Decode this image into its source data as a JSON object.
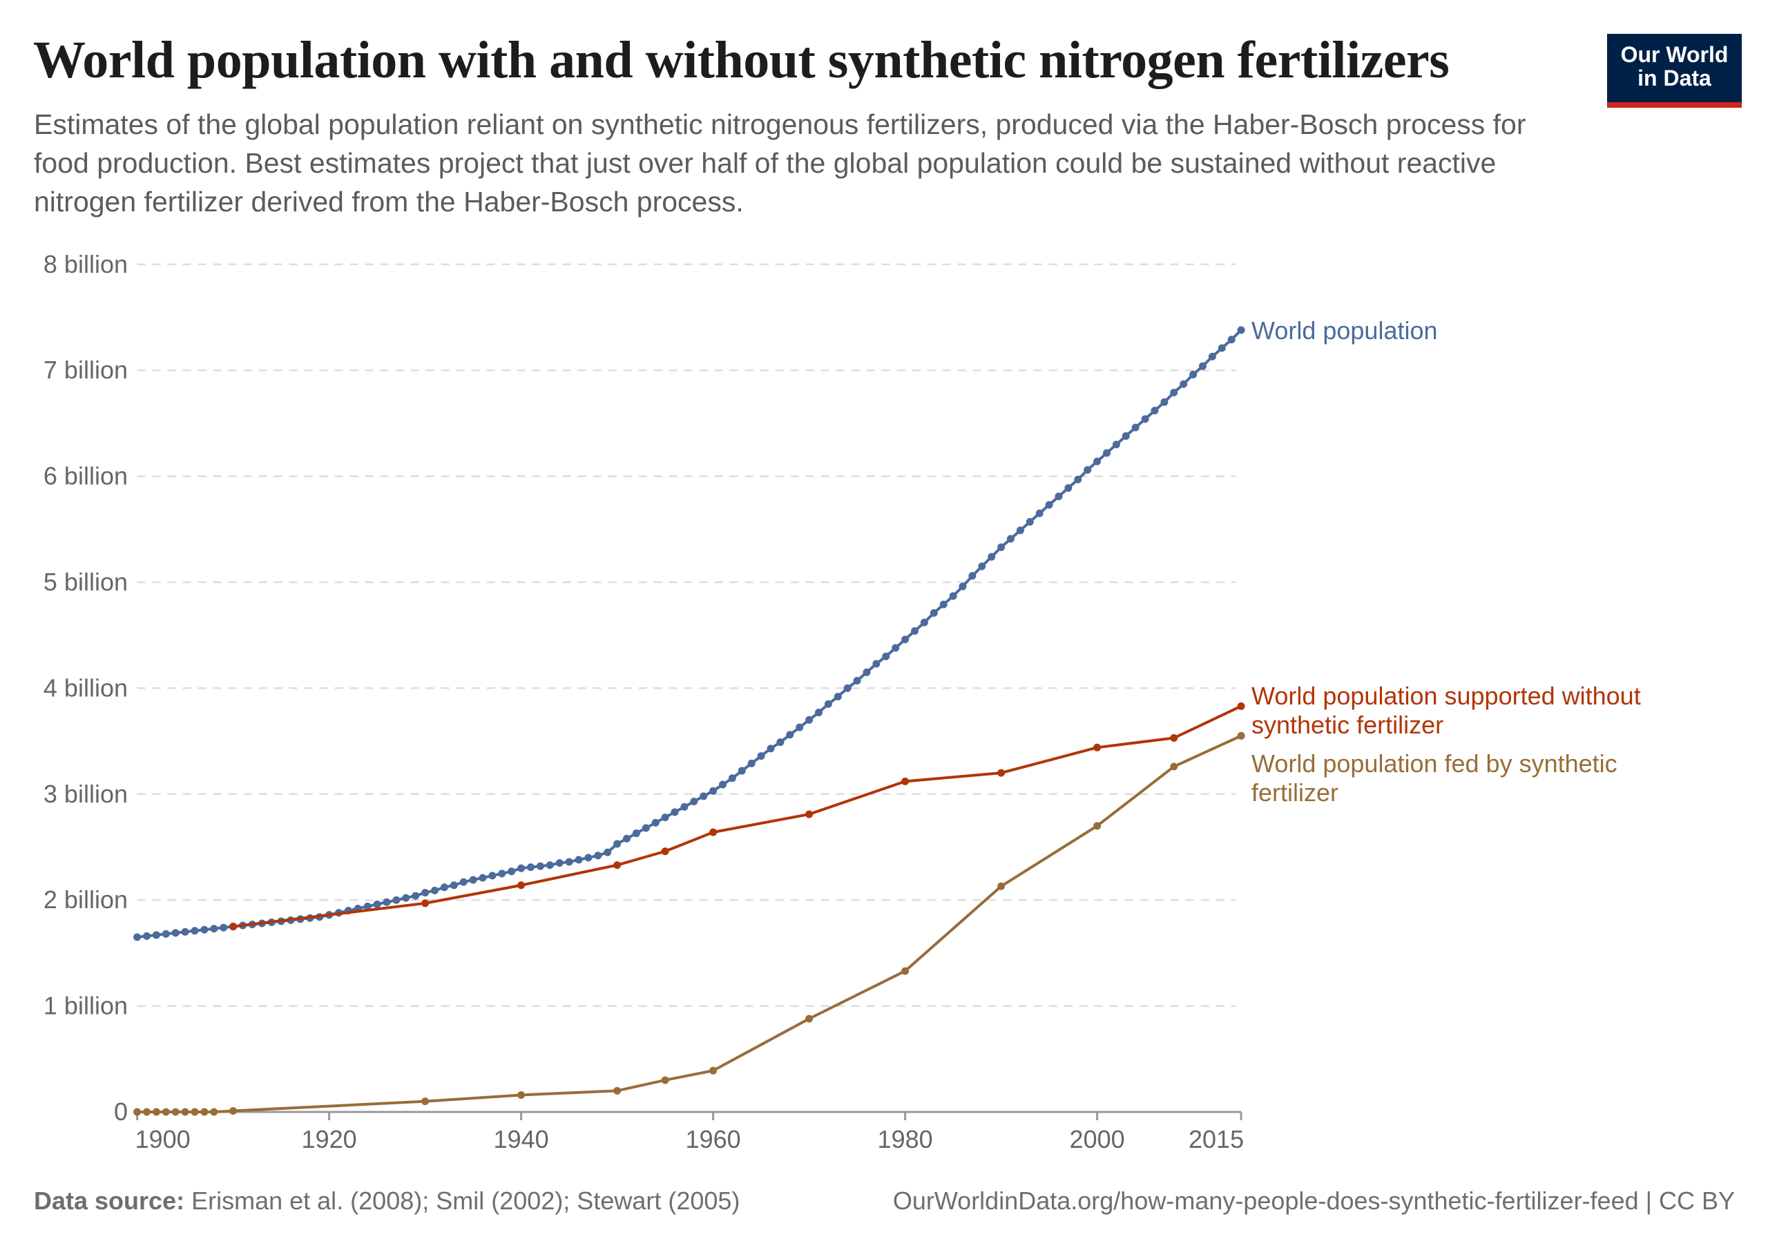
{
  "header": {
    "title": "World population with and without synthetic nitrogen fertilizers",
    "subtitle": "Estimates of the global population reliant on synthetic nitrogenous fertilizers, produced via the Haber-Bosch process for food production. Best estimates project that just over half of the global population could be sustained without reactive nitrogen fertilizer derived from the Haber-Bosch process.",
    "logo_line1": "Our World",
    "logo_line2": "in Data"
  },
  "footer": {
    "source_label": "Data source:",
    "source_text": "Erisman et al. (2008); Smil (2002); Stewart (2005)",
    "url_license": "OurWorldinData.org/how-many-people-does-synthetic-fertilizer-feed | CC BY"
  },
  "chart_data": {
    "type": "line",
    "title": "World population with and without synthetic nitrogen fertilizers",
    "xlim": [
      1900,
      2015
    ],
    "ylim": [
      0,
      8
    ],
    "x_ticks": [
      1900,
      1920,
      1940,
      1960,
      1980,
      2000,
      2015
    ],
    "x_tick_labels": [
      "1900",
      "1920",
      "1940",
      "1960",
      "1980",
      "2000",
      "2015"
    ],
    "y_ticks": [
      0,
      1,
      2,
      3,
      4,
      5,
      6,
      7,
      8
    ],
    "y_tick_labels": [
      "0",
      "1 billion",
      "2 billion",
      "3 billion",
      "4 billion",
      "5 billion",
      "6 billion",
      "7 billion",
      "8 billion"
    ],
    "grid": "horizontal dashed",
    "legend": "inline labels at line ends (right)",
    "unit": "billion",
    "series": [
      {
        "name": "World population",
        "color": "#4c6a9c",
        "x_start": 1900,
        "x_step": 1,
        "values": [
          1.65,
          1.66,
          1.67,
          1.68,
          1.69,
          1.7,
          1.71,
          1.72,
          1.73,
          1.74,
          1.75,
          1.76,
          1.77,
          1.78,
          1.79,
          1.8,
          1.81,
          1.82,
          1.83,
          1.84,
          1.86,
          1.88,
          1.9,
          1.92,
          1.94,
          1.96,
          1.98,
          2.0,
          2.02,
          2.04,
          2.07,
          2.09,
          2.12,
          2.14,
          2.17,
          2.19,
          2.21,
          2.23,
          2.25,
          2.27,
          2.3,
          2.31,
          2.32,
          2.33,
          2.35,
          2.36,
          2.38,
          2.4,
          2.42,
          2.45,
          2.53,
          2.58,
          2.63,
          2.68,
          2.73,
          2.78,
          2.83,
          2.88,
          2.93,
          2.98,
          3.03,
          3.09,
          3.15,
          3.22,
          3.29,
          3.36,
          3.43,
          3.49,
          3.56,
          3.63,
          3.7,
          3.77,
          3.85,
          3.92,
          4.0,
          4.07,
          4.15,
          4.23,
          4.3,
          4.38,
          4.46,
          4.54,
          4.62,
          4.71,
          4.79,
          4.87,
          4.96,
          5.06,
          5.15,
          5.24,
          5.33,
          5.41,
          5.49,
          5.57,
          5.65,
          5.73,
          5.81,
          5.89,
          5.97,
          6.06,
          6.14,
          6.22,
          6.3,
          6.38,
          6.46,
          6.54,
          6.62,
          6.7,
          6.79,
          6.87,
          6.96,
          7.04,
          7.13,
          7.21,
          7.29,
          7.38
        ]
      },
      {
        "name": "World population supported without synthetic fertilizer",
        "color": "#b13507",
        "x": [
          1910,
          1930,
          1940,
          1950,
          1955,
          1960,
          1970,
          1980,
          1990,
          2000,
          2008,
          2015
        ],
        "values": [
          1.75,
          1.97,
          2.14,
          2.33,
          2.46,
          2.64,
          2.81,
          3.12,
          3.2,
          3.44,
          3.53,
          3.83
        ]
      },
      {
        "name": "World population fed by synthetic fertilizer",
        "color": "#986d39",
        "x": [
          1900,
          1901,
          1902,
          1903,
          1904,
          1905,
          1906,
          1907,
          1908,
          1910,
          1930,
          1940,
          1950,
          1955,
          1960,
          1970,
          1980,
          1990,
          2000,
          2008,
          2015
        ],
        "values": [
          0,
          0,
          0,
          0,
          0,
          0,
          0,
          0,
          0,
          0.01,
          0.1,
          0.16,
          0.2,
          0.3,
          0.39,
          0.88,
          1.33,
          2.13,
          2.7,
          3.26,
          3.55
        ]
      }
    ],
    "series_labels": [
      {
        "lines": [
          "World population"
        ]
      },
      {
        "lines": [
          "World population supported without",
          "synthetic fertilizer"
        ]
      },
      {
        "lines": [
          "World population fed by synthetic",
          "fertilizer"
        ]
      }
    ]
  }
}
